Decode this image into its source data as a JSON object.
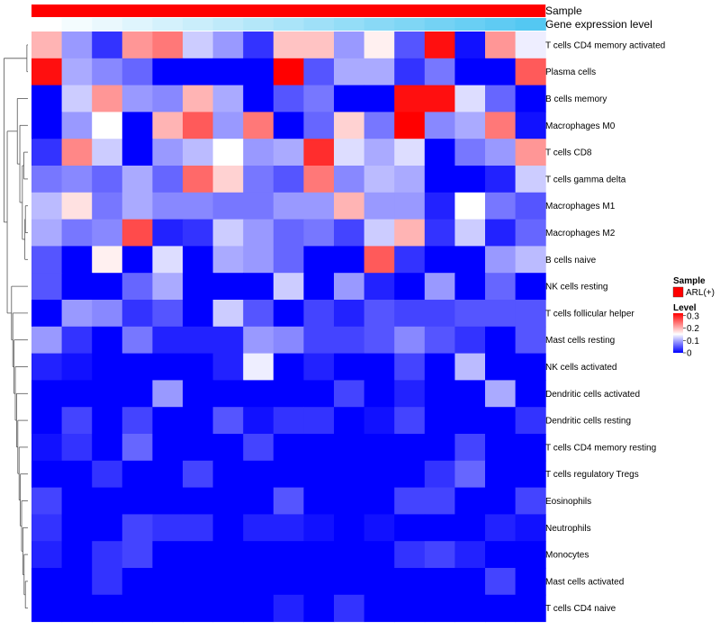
{
  "chart_data": {
    "type": "heatmap",
    "annotation_tracks": [
      {
        "name": "Sample",
        "color": "#ff0000"
      },
      {
        "name": "Gene expression level",
        "colors": [
          "#ffffff",
          "#54c8f2"
        ]
      }
    ],
    "rows": [
      "T cells CD4 memory activated",
      "Plasma cells",
      "B cells memory",
      "Macrophages M0",
      "T cells CD8",
      "T cells gamma delta",
      "Macrophages M1",
      "Macrophages M2",
      "B cells naive",
      "NK cells resting",
      "T cells follicular helper",
      "Mast cells resting",
      "NK cells activated",
      "Dendritic cells activated",
      "Dendritic cells resting",
      "T cells CD4 memory resting",
      "T cells regulatory  Tregs",
      "Eosinophils",
      "Neutrophils",
      "Monocytes",
      "Mast cells activated",
      "T cells CD4 naive"
    ],
    "values": [
      [
        0.2,
        0.09,
        0.03,
        0.22,
        0.24,
        0.12,
        0.09,
        0.03,
        0.19,
        0.19,
        0.09,
        0.16,
        0.05,
        0.31,
        0.01,
        0.22,
        0.14
      ],
      [
        0.31,
        0.1,
        0.08,
        0.06,
        0.0,
        0.0,
        0.0,
        0.0,
        0.32,
        0.05,
        0.1,
        0.1,
        0.03,
        0.07,
        0.0,
        0.0,
        0.26
      ],
      [
        0.0,
        0.12,
        0.22,
        0.09,
        0.08,
        0.2,
        0.1,
        0.0,
        0.05,
        0.07,
        0.0,
        0.0,
        0.31,
        0.31,
        0.13,
        0.06,
        0.0
      ],
      [
        0.0,
        0.09,
        0.15,
        0.0,
        0.2,
        0.26,
        0.09,
        0.24,
        0.0,
        0.06,
        0.18,
        0.07,
        0.32,
        0.08,
        0.1,
        0.24,
        0.01
      ],
      [
        0.03,
        0.23,
        0.12,
        0.0,
        0.09,
        0.11,
        0.15,
        0.09,
        0.1,
        0.29,
        0.13,
        0.1,
        0.13,
        0.0,
        0.07,
        0.09,
        0.22
      ],
      [
        0.07,
        0.08,
        0.06,
        0.1,
        0.06,
        0.25,
        0.18,
        0.07,
        0.05,
        0.24,
        0.08,
        0.11,
        0.1,
        0.0,
        0.0,
        0.02,
        0.12
      ],
      [
        0.11,
        0.17,
        0.07,
        0.1,
        0.08,
        0.08,
        0.07,
        0.07,
        0.09,
        0.09,
        0.2,
        0.09,
        0.09,
        0.02,
        0.15,
        0.07,
        0.05
      ],
      [
        0.1,
        0.07,
        0.08,
        0.27,
        0.02,
        0.03,
        0.12,
        0.09,
        0.06,
        0.07,
        0.04,
        0.12,
        0.2,
        0.03,
        0.12,
        0.02,
        0.06
      ],
      [
        0.05,
        0.0,
        0.16,
        0.0,
        0.13,
        0.0,
        0.1,
        0.09,
        0.06,
        0.0,
        0.0,
        0.26,
        0.03,
        0.0,
        0.0,
        0.09,
        0.11
      ],
      [
        0.05,
        0.0,
        0.0,
        0.06,
        0.1,
        0.0,
        0.0,
        0.0,
        0.12,
        0.0,
        0.09,
        0.02,
        0.0,
        0.09,
        0.0,
        0.06,
        0.0
      ],
      [
        0.0,
        0.09,
        0.08,
        0.03,
        0.05,
        0.0,
        0.12,
        0.05,
        0.0,
        0.04,
        0.02,
        0.05,
        0.04,
        0.04,
        0.05,
        0.05,
        0.05
      ],
      [
        0.09,
        0.03,
        0.0,
        0.07,
        0.02,
        0.02,
        0.02,
        0.09,
        0.08,
        0.04,
        0.04,
        0.05,
        0.08,
        0.05,
        0.03,
        0.0,
        0.05
      ],
      [
        0.02,
        0.01,
        0.0,
        0.0,
        0.0,
        0.0,
        0.02,
        0.14,
        0.0,
        0.02,
        0.0,
        0.0,
        0.04,
        0.0,
        0.11,
        0.0,
        0.0
      ],
      [
        0.0,
        0.0,
        0.0,
        0.0,
        0.09,
        0.0,
        0.0,
        0.0,
        0.0,
        0.0,
        0.04,
        0.0,
        0.02,
        0.0,
        0.0,
        0.1,
        0.0
      ],
      [
        0.0,
        0.04,
        0.0,
        0.04,
        0.0,
        0.0,
        0.05,
        0.01,
        0.03,
        0.03,
        0.0,
        0.01,
        0.04,
        0.0,
        0.0,
        0.0,
        0.03
      ],
      [
        0.01,
        0.03,
        0.0,
        0.06,
        0.0,
        0.0,
        0.0,
        0.04,
        0.0,
        0.0,
        0.0,
        0.0,
        0.0,
        0.0,
        0.04,
        0.0,
        0.0
      ],
      [
        0.0,
        0.0,
        0.03,
        0.0,
        0.0,
        0.04,
        0.0,
        0.0,
        0.0,
        0.0,
        0.0,
        0.0,
        0.0,
        0.03,
        0.06,
        0.0,
        0.0
      ],
      [
        0.04,
        0.0,
        0.0,
        0.0,
        0.0,
        0.0,
        0.0,
        0.0,
        0.05,
        0.0,
        0.0,
        0.0,
        0.04,
        0.04,
        0.0,
        0.0,
        0.04
      ],
      [
        0.03,
        0.0,
        0.0,
        0.04,
        0.03,
        0.03,
        0.0,
        0.02,
        0.02,
        0.01,
        0.0,
        0.01,
        0.0,
        0.0,
        0.0,
        0.02,
        0.01
      ],
      [
        0.02,
        0.0,
        0.03,
        0.04,
        0.0,
        0.0,
        0.0,
        0.0,
        0.0,
        0.0,
        0.0,
        0.0,
        0.03,
        0.04,
        0.02,
        0.0,
        0.0
      ],
      [
        0.0,
        0.0,
        0.03,
        0.0,
        0.0,
        0.0,
        0.0,
        0.0,
        0.0,
        0.0,
        0.0,
        0.0,
        0.0,
        0.0,
        0.0,
        0.04,
        0.0
      ],
      [
        0.0,
        0.0,
        0.0,
        0.0,
        0.0,
        0.0,
        0.0,
        0.0,
        0.02,
        0.0,
        0.03,
        0.0,
        0.0,
        0.0,
        0.0,
        0.0,
        0.0
      ]
    ],
    "color_scale": {
      "min": 0,
      "mid": 0.15,
      "max": 0.32,
      "low_color": "#0000ff",
      "mid_color": "#ffffff",
      "high_color": "#ff0000"
    },
    "legend": {
      "sample_title": "Sample",
      "sample_label": "ARL(+)",
      "sample_color": "#ff0000",
      "level_title": "Level",
      "level_ticks": [
        {
          "value": 0.3,
          "label": "0.3"
        },
        {
          "value": 0.2,
          "label": "0.2"
        },
        {
          "value": 0.1,
          "label": "0.1"
        },
        {
          "value": 0,
          "label": "0"
        }
      ]
    },
    "dendrogram": {
      "leaf_order": [
        0,
        1,
        2,
        3,
        4,
        5,
        6,
        7,
        8,
        9,
        10,
        11,
        12,
        13,
        14,
        15,
        16,
        17,
        18,
        19,
        20,
        21
      ],
      "merges": [
        [
          0,
          1,
          0.04
        ],
        [
          6,
          7,
          0.1
        ],
        [
          8,
          23,
          0.12
        ],
        [
          4,
          5,
          0.16
        ],
        [
          25,
          24,
          0.22
        ],
        [
          3,
          26,
          0.32
        ],
        [
          2,
          27,
          0.42
        ],
        [
          20,
          21,
          0.1
        ],
        [
          19,
          29,
          0.15
        ],
        [
          18,
          30,
          0.2
        ],
        [
          17,
          31,
          0.25
        ],
        [
          16,
          32,
          0.3
        ],
        [
          15,
          33,
          0.35
        ],
        [
          14,
          34,
          0.4
        ],
        [
          13,
          35,
          0.45
        ],
        [
          12,
          36,
          0.5
        ],
        [
          11,
          37,
          0.55
        ],
        [
          10,
          38,
          0.6
        ],
        [
          9,
          39,
          0.65
        ],
        [
          28,
          40,
          0.82
        ],
        [
          22,
          41,
          0.95
        ]
      ]
    }
  }
}
